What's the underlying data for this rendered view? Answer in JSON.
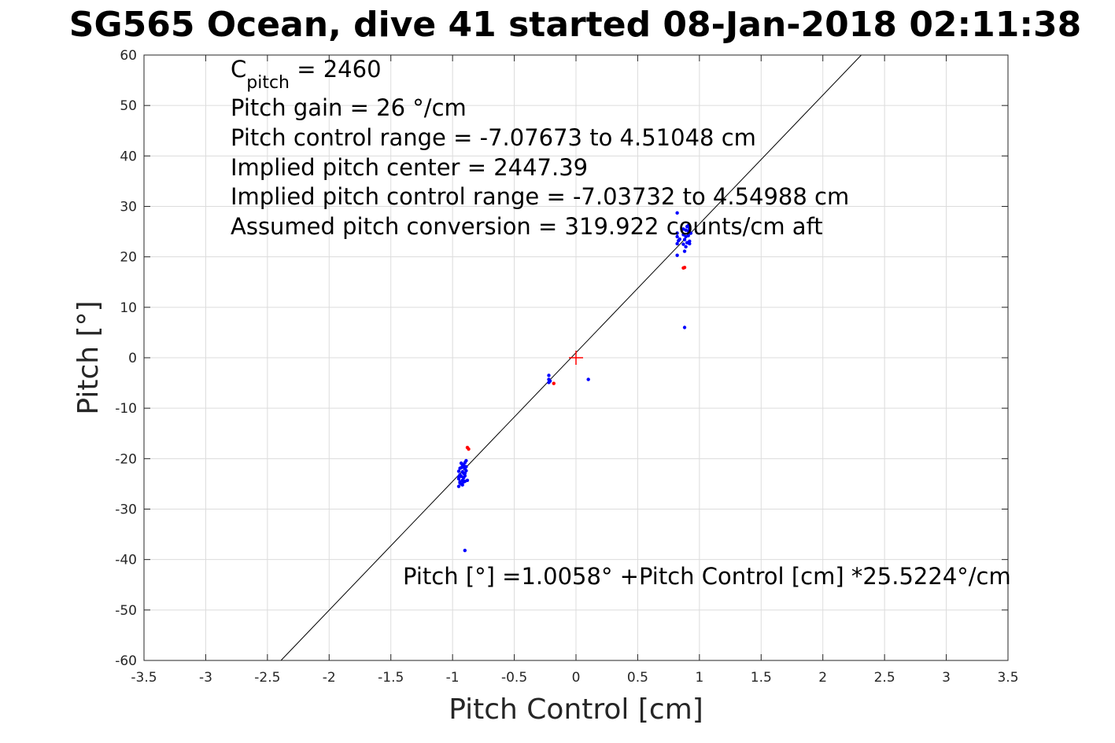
{
  "chart_data": {
    "type": "scatter",
    "title": "SG565 Ocean, dive 41 started 08-Jan-2018 02:11:38",
    "xlabel": "Pitch Control [cm]",
    "ylabel": "Pitch [°]",
    "xlim": [
      -3.5,
      3.5
    ],
    "ylim": [
      -60,
      60
    ],
    "xticks": [
      -3.5,
      -3,
      -2.5,
      -2,
      -1.5,
      -1,
      -0.5,
      0,
      0.5,
      1,
      1.5,
      2,
      2.5,
      3,
      3.5
    ],
    "xtick_labels": [
      "-3.5",
      "-3",
      "-2.5",
      "-2",
      "-1.5",
      "-1",
      "-0.5",
      "0",
      "0.5",
      "1",
      "1.5",
      "2",
      "2.5",
      "3",
      "3.5"
    ],
    "yticks": [
      -60,
      -50,
      -40,
      -30,
      -20,
      -10,
      0,
      10,
      20,
      30,
      40,
      50,
      60
    ],
    "ytick_labels": [
      "-60",
      "-50",
      "-40",
      "-30",
      "-20",
      "-10",
      "0",
      "10",
      "20",
      "30",
      "40",
      "50",
      "60"
    ],
    "grid": true,
    "colors": {
      "good": "#0000ff",
      "rejected": "#ff0000",
      "fit": "#000000"
    },
    "series": [
      {
        "color": "#0000ff",
        "points": [
          [
            -0.95,
            -25.5
          ],
          [
            -0.94,
            -24.8
          ],
          [
            -0.95,
            -24.0
          ],
          [
            -0.94,
            -23.2
          ],
          [
            -0.95,
            -22.5
          ],
          [
            -0.93,
            -25.0
          ],
          [
            -0.92,
            -24.3
          ],
          [
            -0.93,
            -23.5
          ],
          [
            -0.92,
            -22.6
          ],
          [
            -0.93,
            -21.8
          ],
          [
            -0.91,
            -24.6
          ],
          [
            -0.91,
            -23.8
          ],
          [
            -0.91,
            -22.9
          ],
          [
            -0.9,
            -22.0
          ],
          [
            -0.91,
            -21.3
          ],
          [
            -0.9,
            -23.4
          ],
          [
            -0.89,
            -22.4
          ],
          [
            -0.89,
            -21.6
          ],
          [
            -0.9,
            -20.8
          ],
          [
            -0.89,
            -20.4
          ],
          [
            -0.94,
            -21.9
          ],
          [
            -0.93,
            -20.9
          ],
          [
            -0.92,
            -21.2
          ],
          [
            -0.9,
            -24.5
          ],
          [
            -0.88,
            -24.3
          ],
          [
            -0.94,
            -24.6
          ],
          [
            -0.95,
            -23.6
          ],
          [
            -0.92,
            -25.2
          ],
          [
            -0.91,
            -21.7
          ],
          [
            -0.9,
            -22.9
          ],
          [
            -0.9,
            -38.2
          ],
          [
            -0.22,
            -3.5
          ],
          [
            -0.22,
            -4.3
          ],
          [
            -0.22,
            -4.9
          ],
          [
            -0.21,
            -4.6
          ],
          [
            0.1,
            -4.3
          ],
          [
            0.82,
            28.7
          ],
          [
            0.82,
            24.7
          ],
          [
            0.82,
            24.0
          ],
          [
            0.83,
            23.2
          ],
          [
            0.82,
            22.6
          ],
          [
            0.82,
            20.3
          ],
          [
            0.84,
            23.5
          ],
          [
            0.87,
            25.5
          ],
          [
            0.87,
            24.4
          ],
          [
            0.88,
            23.4
          ],
          [
            0.87,
            22.5
          ],
          [
            0.88,
            21.1
          ],
          [
            0.89,
            25.3
          ],
          [
            0.89,
            24.0
          ],
          [
            0.9,
            22.8
          ],
          [
            0.9,
            26.0
          ],
          [
            0.89,
            22.0
          ],
          [
            0.91,
            25.1
          ],
          [
            0.91,
            24.2
          ],
          [
            0.92,
            23.1
          ],
          [
            0.91,
            26.2
          ],
          [
            0.92,
            22.6
          ],
          [
            0.93,
            24.7
          ],
          [
            0.92,
            25.6
          ],
          [
            0.88,
            6.0
          ]
        ]
      },
      {
        "color": "#ff0000",
        "points": [
          [
            -0.88,
            -17.8
          ],
          [
            -0.87,
            -18.1
          ],
          [
            -0.18,
            -5.1
          ],
          [
            0.87,
            17.8
          ],
          [
            0.88,
            17.9
          ]
        ]
      }
    ],
    "fit_line": {
      "intercept": 1.0058,
      "slope": 25.5224
    },
    "center_marker": {
      "x": 0,
      "y": 0,
      "color": "#ff0000"
    },
    "annotations": {
      "c_pitch_symbol": "C",
      "c_pitch_sub": "pitch",
      "c_pitch_rest": " = 2460",
      "lines": [
        "Pitch gain = 26 °/cm",
        "Pitch control range = -7.07673 to 4.51048 cm",
        "Implied pitch center = 2447.39",
        "Implied pitch control range = -7.03732 to 4.54988 cm",
        "Assumed pitch conversion = 319.922 counts/cm aft"
      ],
      "fit_equation": "Pitch [°] =1.0058° +Pitch Control [cm] *25.5224°/cm"
    }
  }
}
